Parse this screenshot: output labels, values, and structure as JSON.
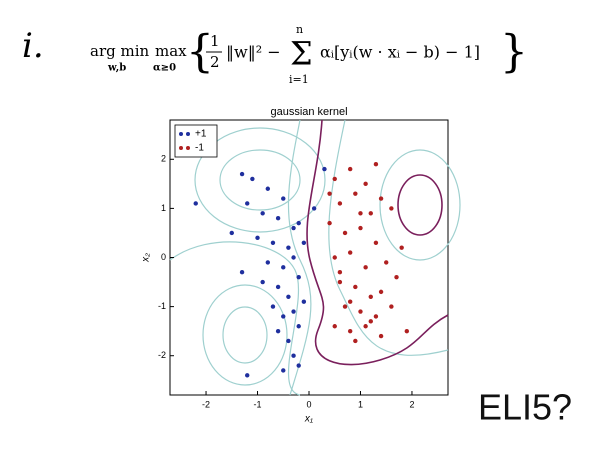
{
  "label": "i.",
  "formula": {
    "argmin": "arg min",
    "argmin_sub": "w,b",
    "max": "max",
    "max_sub": "α≥0",
    "open": "{",
    "num": "1",
    "den": "2",
    "norm": "‖w‖² −",
    "sum": "Σ",
    "sum_top": "n",
    "sum_bottom": "i=1",
    "term": "αᵢ[yᵢ(w · xᵢ − b) − 1]",
    "close": "}"
  },
  "caption": "ELI5?",
  "chart_data": {
    "type": "scatter",
    "title": "gaussian kernel",
    "x_label": "x₁",
    "y_label": "x₂",
    "xlim": [
      -2.7,
      2.7
    ],
    "ylim": [
      -2.8,
      2.8
    ],
    "xticks": [
      -2,
      -1,
      0,
      1,
      2
    ],
    "yticks": [
      -2,
      -1,
      0,
      1,
      2
    ],
    "legend": "upper-left",
    "series": [
      {
        "name": "+1",
        "color": "#1f2f9e",
        "x": [
          -1.3,
          -1.1,
          -0.8,
          -0.5,
          -1.2,
          -0.9,
          -0.6,
          -0.3,
          -1.5,
          -1.0,
          -0.7,
          -0.4,
          -0.2,
          -0.8,
          -0.5,
          -0.3,
          -0.1,
          -1.3,
          -0.9,
          -0.6,
          -0.4,
          -0.2,
          -0.7,
          -0.5,
          -0.3,
          -0.1,
          -0.6,
          -0.4,
          -0.2,
          -0.3,
          -0.5,
          -0.2,
          -2.2,
          -1.2,
          0.1,
          0.3
        ],
        "values": [
          1.7,
          1.6,
          1.4,
          1.2,
          1.1,
          0.9,
          0.8,
          0.6,
          0.5,
          0.4,
          0.3,
          0.2,
          0.7,
          -0.1,
          -0.2,
          0.0,
          0.3,
          -0.3,
          -0.5,
          -0.6,
          -0.8,
          -0.4,
          -1.0,
          -1.2,
          -1.1,
          -0.9,
          -1.5,
          -1.7,
          -1.4,
          -2.0,
          -2.3,
          -2.2,
          1.1,
          -2.4,
          1.0,
          1.8
        ]
      },
      {
        "name": "-1",
        "color": "#b02020",
        "x": [
          0.5,
          0.8,
          1.1,
          1.4,
          0.6,
          0.9,
          1.2,
          1.6,
          0.4,
          0.7,
          1.0,
          1.3,
          0.5,
          0.8,
          1.1,
          1.5,
          1.8,
          0.6,
          0.9,
          1.2,
          1.4,
          0.7,
          1.0,
          1.3,
          1.6,
          0.5,
          0.8,
          1.1,
          1.4,
          0.9,
          1.2,
          0.6,
          1.0,
          1.7,
          0.4,
          0.8,
          1.3,
          1.9
        ],
        "values": [
          1.6,
          1.8,
          1.5,
          1.2,
          1.1,
          1.3,
          0.9,
          1.0,
          0.7,
          0.5,
          0.6,
          0.3,
          0.0,
          0.1,
          -0.2,
          -0.1,
          0.2,
          -0.5,
          -0.6,
          -0.8,
          -0.7,
          -1.0,
          -1.1,
          -1.2,
          -1.0,
          -1.4,
          -1.5,
          -1.4,
          -1.6,
          -1.7,
          -1.3,
          -0.3,
          0.9,
          -0.4,
          1.3,
          -0.9,
          1.9,
          -1.5
        ]
      }
    ]
  }
}
